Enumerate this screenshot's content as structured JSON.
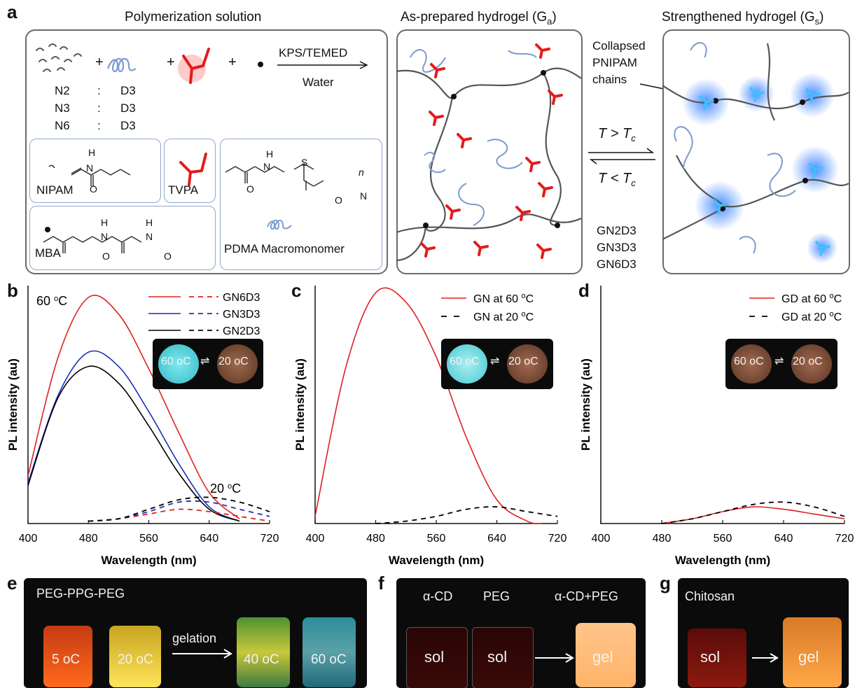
{
  "panel_letters": {
    "a": "a",
    "b": "b",
    "c": "c",
    "d": "d",
    "e": "e",
    "f": "f",
    "g": "g"
  },
  "panel_a": {
    "title_left": "Polymerization solution",
    "title_mid_main": "As-prepared hydrogel (G",
    "title_mid_sub": "a",
    "title_mid_end": ")",
    "title_right_main": "Strengthened hydrogel (G",
    "title_right_sub": "s",
    "title_right_end": ")",
    "reaction_top": "KPS/TEMED",
    "reaction_bottom": "Water",
    "plus": "+",
    "ratios": [
      {
        "left": "N2",
        "sep": ":",
        "right": "D3"
      },
      {
        "left": "N3",
        "sep": ":",
        "right": "D3"
      },
      {
        "left": "N6",
        "sep": ":",
        "right": "D3"
      }
    ],
    "structures": {
      "nipam": "NIPAM",
      "tvpa": "TVPA",
      "mba": "MBA",
      "pdma": "PDMA Macromonomer",
      "atom_h": "H",
      "atom_n": "N",
      "atom_o": "O",
      "atom_s": "S",
      "sub_n": "n"
    },
    "collapsed_label": [
      "Collapsed",
      "PNIPAM",
      "chains"
    ],
    "transition_top": "T > T",
    "transition_top_sub": "c",
    "transition_bottom": "T < T",
    "transition_bottom_sub": "c",
    "samples": [
      "GN2D3",
      "GN3D3",
      "GN6D3"
    ]
  },
  "chart_data": [
    {
      "id": "b",
      "type": "line",
      "xlabel": "Wavelength (nm)",
      "ylabel": "PL intensity (au)",
      "xlim": [
        400,
        720
      ],
      "xticks": [
        "400",
        "480",
        "560",
        "640",
        "720"
      ],
      "annotation_hot": "60 oC",
      "annotation_cold": "20 oC",
      "legend": [
        "GN6D3",
        "GN3D3",
        "GN2D3"
      ],
      "legend_placement": "top-right",
      "inset_labels": [
        "60 oC",
        "20 oC"
      ],
      "series": [
        {
          "name": "GN6D3",
          "temp": "60",
          "color": "#e02020",
          "dash": false,
          "x": [
            400,
            440,
            480,
            520,
            560,
            600,
            640,
            680
          ],
          "y": [
            0.2,
            0.7,
            0.95,
            0.88,
            0.65,
            0.38,
            0.13,
            0.02
          ]
        },
        {
          "name": "GN3D3",
          "temp": "60",
          "color": "#1e2fb5",
          "dash": false,
          "x": [
            400,
            440,
            480,
            520,
            560,
            600,
            640,
            680
          ],
          "y": [
            0.17,
            0.54,
            0.72,
            0.66,
            0.47,
            0.25,
            0.07,
            0.01
          ]
        },
        {
          "name": "GN2D3",
          "temp": "60",
          "color": "#000000",
          "dash": false,
          "x": [
            400,
            440,
            480,
            520,
            560,
            600,
            640,
            680
          ],
          "y": [
            0.16,
            0.53,
            0.66,
            0.59,
            0.41,
            0.21,
            0.06,
            0.01
          ]
        },
        {
          "name": "GN6D3",
          "temp": "20",
          "color": "#e02020",
          "dash": true,
          "x": [
            480,
            520,
            560,
            600,
            640,
            680,
            720
          ],
          "y": [
            0.01,
            0.02,
            0.04,
            0.06,
            0.05,
            0.03,
            0.01
          ]
        },
        {
          "name": "GN3D3",
          "temp": "20",
          "color": "#1e2fb5",
          "dash": true,
          "x": [
            480,
            520,
            560,
            600,
            640,
            680,
            720
          ],
          "y": [
            0.01,
            0.02,
            0.05,
            0.09,
            0.09,
            0.06,
            0.03
          ]
        },
        {
          "name": "GN2D3",
          "temp": "20",
          "color": "#000000",
          "dash": true,
          "x": [
            480,
            520,
            560,
            600,
            640,
            680,
            720
          ],
          "y": [
            0.01,
            0.02,
            0.06,
            0.1,
            0.11,
            0.09,
            0.05
          ]
        }
      ]
    },
    {
      "id": "c",
      "type": "line",
      "xlabel": "Wavelength (nm)",
      "ylabel": "PL intensity (au)",
      "xlim": [
        400,
        720
      ],
      "xticks": [
        "400",
        "480",
        "560",
        "640",
        "720"
      ],
      "legend": [
        "GN at 60 oC",
        "GN at 20 oC"
      ],
      "legend_placement": "top-right",
      "inset_labels": [
        "60 oC",
        "20 oC"
      ],
      "series": [
        {
          "name": "GN at 60 oC",
          "color": "#e02020",
          "dash": false,
          "x": [
            400,
            440,
            480,
            520,
            560,
            600,
            640,
            680,
            700
          ],
          "y": [
            0.03,
            0.65,
            0.97,
            0.93,
            0.7,
            0.36,
            0.1,
            0.01,
            0.0
          ]
        },
        {
          "name": "GN at 20 oC",
          "color": "#000000",
          "dash": true,
          "x": [
            480,
            520,
            560,
            600,
            640,
            680,
            720
          ],
          "y": [
            0.0,
            0.01,
            0.03,
            0.06,
            0.07,
            0.05,
            0.03
          ]
        }
      ]
    },
    {
      "id": "d",
      "type": "line",
      "xlabel": "Wavelength (nm)",
      "ylabel": "PL intensity (au)",
      "xlim": [
        400,
        720
      ],
      "xticks": [
        "400",
        "480",
        "560",
        "640",
        "720"
      ],
      "legend": [
        "GD at 60 oC",
        "GD at 20 oC"
      ],
      "legend_placement": "top-right",
      "inset_labels": [
        "60 oC",
        "20 oC"
      ],
      "series": [
        {
          "name": "GD at 60 oC",
          "color": "#e02020",
          "dash": false,
          "x": [
            480,
            520,
            560,
            600,
            640,
            680,
            720
          ],
          "y": [
            0.0,
            0.02,
            0.05,
            0.07,
            0.06,
            0.04,
            0.02
          ]
        },
        {
          "name": "GD at 20 oC",
          "color": "#000000",
          "dash": true,
          "x": [
            480,
            520,
            560,
            600,
            640,
            680,
            720
          ],
          "y": [
            0.0,
            0.02,
            0.05,
            0.08,
            0.09,
            0.07,
            0.03
          ]
        }
      ]
    }
  ],
  "panel_e": {
    "title": "PEG-PPG-PEG",
    "arrow": "gelation",
    "vials": [
      "5 oC",
      "20 oC",
      "40 oC",
      "60 oC"
    ]
  },
  "panel_f": {
    "labels": [
      "α-CD",
      "PEG",
      "α-CD+PEG"
    ],
    "states": [
      "sol",
      "sol",
      "gel"
    ]
  },
  "panel_g": {
    "title": "Chitosan",
    "states": [
      "sol",
      "gel"
    ]
  }
}
